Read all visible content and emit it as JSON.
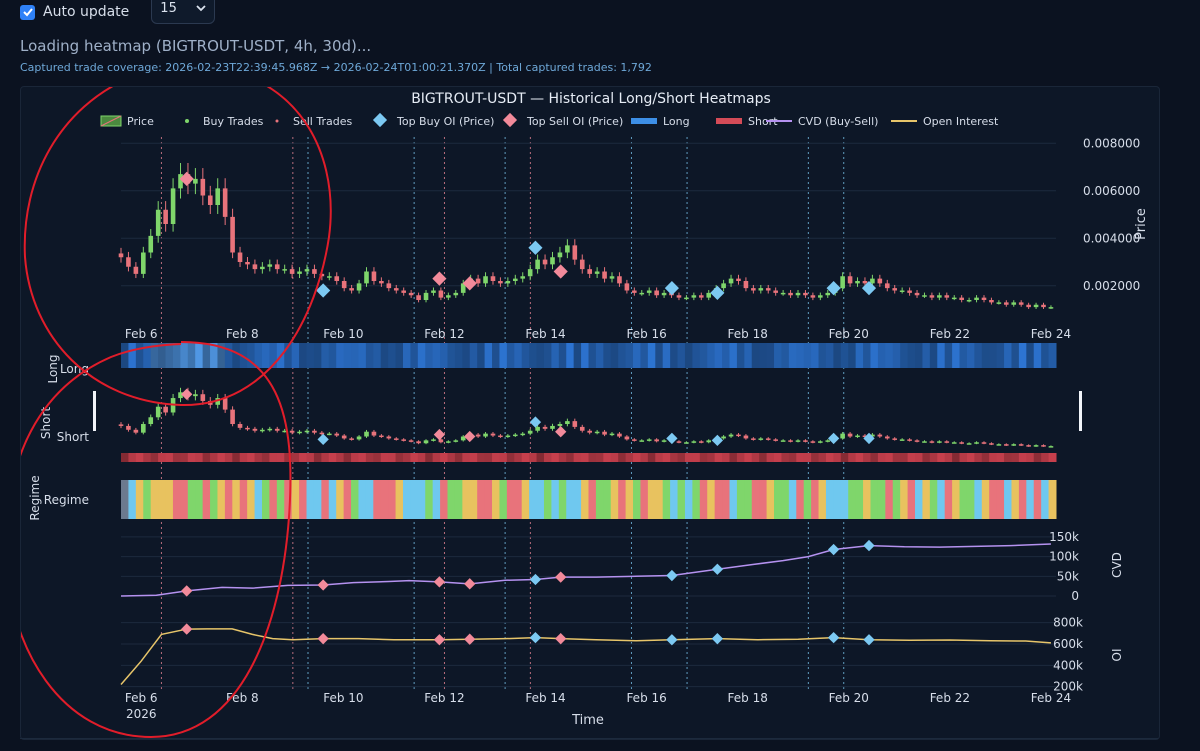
{
  "controls": {
    "auto_update_label": "Auto update",
    "auto_update_checked": true,
    "interval_value": "15",
    "loading_text": "Loading heatmap (BIGTROUT-USDT, 4h, 30d)...",
    "coverage_text": "Captured trade coverage: 2026-02-23T22:39:45.968Z → 2026-02-24T01:00:21.370Z | Total captured trades: 1,792"
  },
  "colors": {
    "bg": "#0b1220",
    "panel": "#0d1727",
    "up": "#7fd66b",
    "down": "#e8737b",
    "long": "#3d8fe6",
    "short": "#d44b57",
    "cvd": "#b592f0",
    "oi": "#e7c56a",
    "buy_oi": "#7cc9f2",
    "sell_oi": "#f28a9a",
    "annotation": "#e11d2a"
  },
  "chart_data": {
    "type": "line",
    "title": "BIGTROUT-USDT — Historical Long/Short Heatmaps",
    "xlabel": "Time",
    "x_ticks": [
      "Feb 6",
      "Feb 8",
      "Feb 10",
      "Feb 12",
      "Feb 14",
      "Feb 16",
      "Feb 18",
      "Feb 20",
      "Feb 22",
      "Feb 24"
    ],
    "x_year_label": "2026",
    "x_range": [
      5.6,
      24.1
    ],
    "legend_position": "top",
    "legend": [
      "Price",
      "Buy Trades",
      "Sell Trades",
      "Top Buy OI (Price)",
      "Top Sell OI (Price)",
      "Long",
      "Short",
      "CVD (Buy-Sell)",
      "Open Interest"
    ],
    "price": {
      "ylabel": "Price",
      "ylim": [
        0.0006,
        0.0086
      ],
      "y_ticks": [
        "0.002000",
        "0.004000",
        "0.006000",
        "0.008000"
      ],
      "y_tick_values": [
        0.002,
        0.004,
        0.006,
        0.008
      ],
      "close": [
        0.0032,
        0.0028,
        0.0025,
        0.0034,
        0.0041,
        0.0052,
        0.0046,
        0.0061,
        0.0067,
        0.0063,
        0.0065,
        0.0058,
        0.0054,
        0.0061,
        0.0049,
        0.0034,
        0.003,
        0.0029,
        0.0027,
        0.0028,
        0.0029,
        0.0027,
        0.0027,
        0.0025,
        0.0026,
        0.0027,
        0.0025,
        0.0024,
        0.0024,
        0.0022,
        0.0019,
        0.0018,
        0.0021,
        0.0026,
        0.0022,
        0.0021,
        0.0019,
        0.0018,
        0.0017,
        0.0016,
        0.0014,
        0.0017,
        0.0018,
        0.0015,
        0.0016,
        0.0017,
        0.0021,
        0.0023,
        0.0021,
        0.0024,
        0.0022,
        0.0021,
        0.0022,
        0.0023,
        0.0024,
        0.0027,
        0.0031,
        0.0029,
        0.0032,
        0.0034,
        0.0037,
        0.0031,
        0.0027,
        0.0025,
        0.0026,
        0.0023,
        0.0024,
        0.0021,
        0.0018,
        0.0017,
        0.0017,
        0.0018,
        0.0016,
        0.0017,
        0.0016,
        0.0015,
        0.0015,
        0.0016,
        0.0015,
        0.0017,
        0.0019,
        0.0021,
        0.0023,
        0.0022,
        0.0019,
        0.0018,
        0.0019,
        0.0018,
        0.0017,
        0.0017,
        0.0016,
        0.0017,
        0.0016,
        0.0015,
        0.0016,
        0.0017,
        0.0019,
        0.0024,
        0.0021,
        0.0022,
        0.0021,
        0.0023,
        0.0021,
        0.0019,
        0.0018,
        0.0018,
        0.0017,
        0.0016,
        0.0016,
        0.0015,
        0.0016,
        0.0015,
        0.0015,
        0.0014,
        0.0014,
        0.0015,
        0.0014,
        0.0013,
        0.0013,
        0.0012,
        0.0013,
        0.0012,
        0.0011,
        0.0012,
        0.0011,
        0.0011
      ]
    },
    "top_buy_oi": [
      [
        9.6,
        0.0018
      ],
      [
        13.8,
        0.0036
      ],
      [
        16.5,
        0.0019
      ],
      [
        17.4,
        0.0017
      ],
      [
        19.7,
        0.0019
      ],
      [
        20.4,
        0.0019
      ]
    ],
    "top_sell_oi": [
      [
        6.9,
        0.0065
      ],
      [
        11.9,
        0.0023
      ],
      [
        12.5,
        0.0021
      ],
      [
        14.3,
        0.0026
      ]
    ],
    "long_panel": {
      "label": "Long",
      "ylabel": "Long"
    },
    "short_panel": {
      "label": "Short",
      "ylabel": "Short"
    },
    "regime_panel": {
      "label": "Regime",
      "ylabel": "Regime"
    },
    "regime_colors": [
      "#e8c25f",
      "#7fd66b",
      "#e8737b",
      "#6fc8ef"
    ],
    "cvd": {
      "ylabel": "CVD",
      "y_ticks": [
        "0",
        "50k",
        "100k",
        "150k"
      ],
      "y_tick_values": [
        0,
        50000,
        100000,
        150000
      ],
      "ylim": [
        -10000,
        165000
      ],
      "x": [
        5.6,
        6.3,
        6.9,
        7.6,
        8.2,
        8.9,
        9.6,
        10.2,
        10.9,
        11.3,
        11.9,
        12.5,
        13.2,
        13.8,
        14.3,
        15.0,
        15.7,
        16.5,
        17.4,
        18.1,
        18.7,
        19.2,
        19.7,
        20.4,
        21.1,
        21.8,
        22.5,
        23.2,
        24.0
      ],
      "values": [
        0,
        2000,
        13000,
        22000,
        20000,
        27000,
        28000,
        34000,
        37000,
        39000,
        36000,
        31000,
        40000,
        42000,
        48000,
        48000,
        50000,
        52000,
        68000,
        80000,
        90000,
        100000,
        118000,
        128000,
        125000,
        124000,
        126000,
        128000,
        132000
      ]
    },
    "cvd_markers_buy": [
      [
        13.8,
        42000
      ],
      [
        16.5,
        52000
      ],
      [
        17.4,
        68000
      ],
      [
        19.7,
        118000
      ],
      [
        20.4,
        128000
      ]
    ],
    "cvd_markers_sell": [
      [
        6.9,
        13000
      ],
      [
        9.6,
        28000
      ],
      [
        11.9,
        36000
      ],
      [
        12.5,
        31000
      ],
      [
        14.3,
        48000
      ]
    ],
    "oi": {
      "ylabel": "OI",
      "y_ticks": [
        "200k",
        "400k",
        "600k",
        "800k"
      ],
      "y_tick_values": [
        200000,
        400000,
        600000,
        800000
      ],
      "ylim": [
        150000,
        900000
      ],
      "x": [
        5.6,
        6.0,
        6.4,
        6.9,
        7.3,
        7.8,
        8.2,
        8.6,
        9.0,
        9.6,
        10.3,
        11.0,
        11.9,
        12.5,
        13.2,
        13.8,
        14.3,
        15.0,
        15.8,
        16.5,
        17.4,
        18.2,
        19.0,
        19.7,
        20.4,
        21.2,
        22.0,
        22.8,
        23.5,
        24.0
      ],
      "values": [
        220000,
        440000,
        690000,
        740000,
        742000,
        742000,
        690000,
        650000,
        640000,
        650000,
        650000,
        640000,
        640000,
        645000,
        650000,
        660000,
        650000,
        640000,
        630000,
        640000,
        650000,
        640000,
        645000,
        660000,
        640000,
        635000,
        638000,
        630000,
        628000,
        610000
      ]
    },
    "oi_markers_buy": [
      [
        13.8,
        660000
      ],
      [
        16.5,
        640000
      ],
      [
        17.4,
        650000
      ],
      [
        19.7,
        660000
      ],
      [
        20.4,
        640000
      ]
    ],
    "oi_markers_sell": [
      [
        6.9,
        740000
      ],
      [
        9.6,
        650000
      ],
      [
        11.9,
        640000
      ],
      [
        12.5,
        645000
      ],
      [
        14.3,
        650000
      ]
    ],
    "buy_oi_lines_x": [
      9.3,
      11.4,
      13.2,
      15.7,
      16.8,
      19.2,
      19.9
    ],
    "sell_oi_lines_x": [
      6.4,
      9.0,
      12.0,
      13.7
    ]
  }
}
